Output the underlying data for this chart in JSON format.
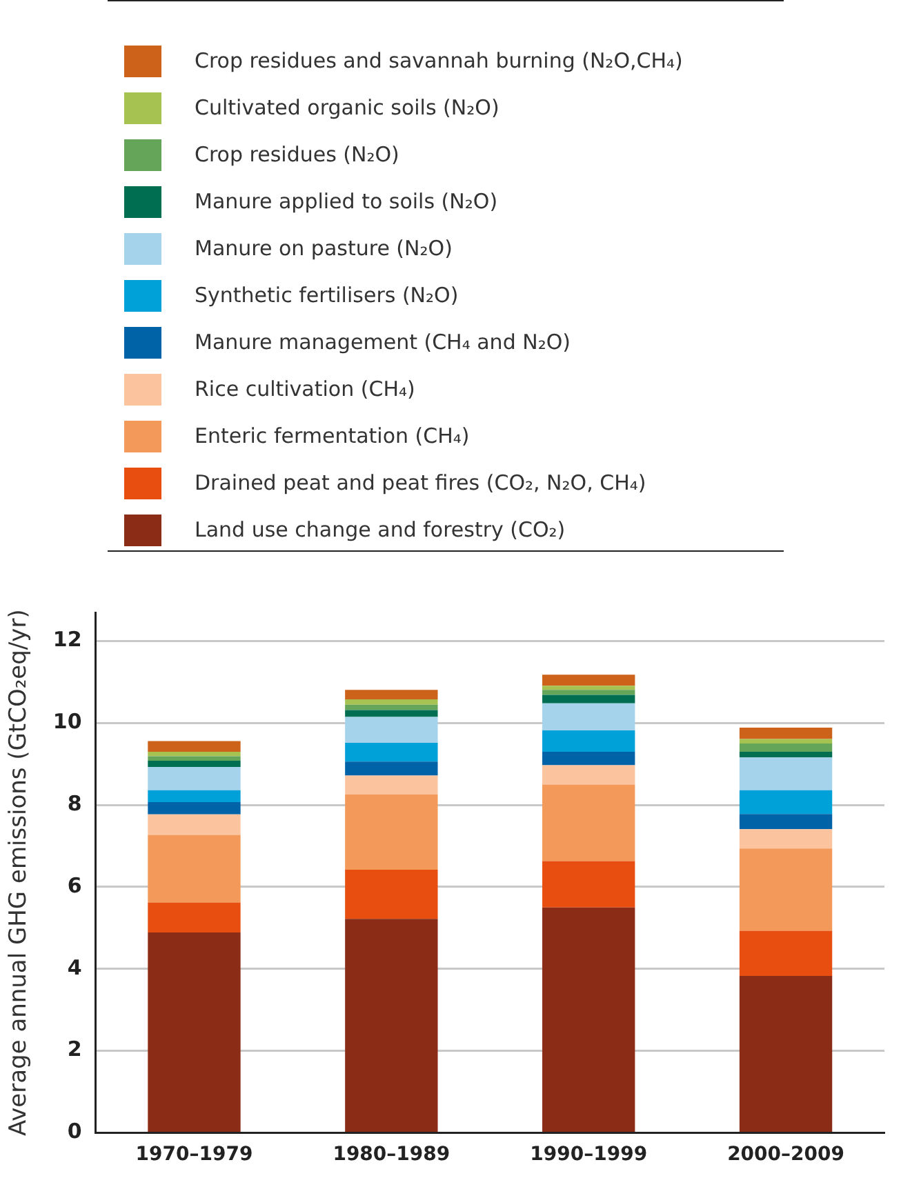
{
  "chart_data": {
    "type": "bar",
    "stacked": true,
    "ylabel": "Average annual GHG emissions (GtCO₂eq/yr)",
    "categories": [
      "1970–1979",
      "1980–1989",
      "1990–1999",
      "2000–2009"
    ],
    "ylim": [
      0,
      12.7
    ],
    "yticks": [
      0,
      2,
      4,
      6,
      8,
      10,
      12
    ],
    "grid": "y",
    "legend": "top",
    "series": [
      {
        "name": "Land use change and forestry (CO₂)",
        "color": "#8b2c16",
        "values": [
          4.89,
          5.22,
          5.5,
          3.83
        ]
      },
      {
        "name": "Drained peat and peat fires (CO₂, N₂O, CH₄)",
        "color": "#e84e10",
        "values": [
          0.73,
          1.2,
          1.13,
          1.1
        ]
      },
      {
        "name": "Enteric fermentation (CH₄)",
        "color": "#f39a5a",
        "values": [
          1.65,
          1.84,
          1.87,
          2.01
        ]
      },
      {
        "name": "Rice cultivation (CH₄)",
        "color": "#fcc39f",
        "values": [
          0.5,
          0.46,
          0.47,
          0.47
        ]
      },
      {
        "name": "Manure management (CH₄ and N₂O)",
        "color": "#0063a8",
        "values": [
          0.3,
          0.34,
          0.33,
          0.37
        ]
      },
      {
        "name": "Synthetic fertilisers (N₂O)",
        "color": "#00a0d8",
        "values": [
          0.29,
          0.46,
          0.52,
          0.58
        ]
      },
      {
        "name": "Manure on pasture (N₂O)",
        "color": "#a5d3eb",
        "values": [
          0.57,
          0.63,
          0.66,
          0.8
        ]
      },
      {
        "name": "Manure applied to soils (N₂O)",
        "color": "#006f51",
        "values": [
          0.15,
          0.17,
          0.21,
          0.14
        ]
      },
      {
        "name": "Crop residues (N₂O)",
        "color": "#65a55a",
        "values": [
          0.11,
          0.13,
          0.12,
          0.2
        ]
      },
      {
        "name": "Cultivated organic soils (N₂O)",
        "color": "#a6c250",
        "values": [
          0.11,
          0.13,
          0.1,
          0.11
        ]
      },
      {
        "name": "Crop residues and savannah burning (N₂O,CH₄)",
        "color": "#cd621a",
        "values": [
          0.26,
          0.23,
          0.27,
          0.28
        ]
      }
    ]
  }
}
